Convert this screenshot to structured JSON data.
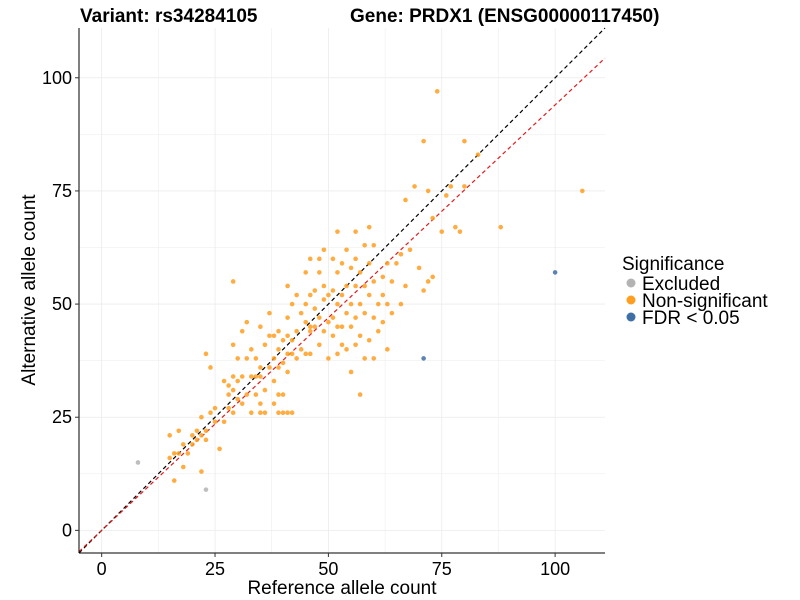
{
  "chart_data": {
    "type": "scatter",
    "title_left": "Variant: rs34284105",
    "title_right": "Gene: PRDX1 (ENSG00000117450)",
    "xlabel": "Reference allele count",
    "ylabel": "Alternative allele count",
    "xlim": [
      -5,
      111
    ],
    "ylim": [
      -5,
      111
    ],
    "xticks": [
      0,
      25,
      50,
      75,
      100
    ],
    "yticks": [
      0,
      25,
      50,
      75,
      100
    ],
    "grid": true,
    "legend": {
      "title": "Significance",
      "position": "right",
      "entries": [
        {
          "label": "Excluded",
          "color": "#b3b3b3"
        },
        {
          "label": "Non-significant",
          "color": "#ff9e1f"
        },
        {
          "label": "FDR < 0.05",
          "color": "#3e6fa5"
        }
      ]
    },
    "reference_lines": [
      {
        "name": "identity",
        "color": "#000000",
        "style": "dashed",
        "slope": 1,
        "intercept": 0
      },
      {
        "name": "fit",
        "color": "#e41a1c",
        "style": "dashed",
        "slope": 0.94,
        "intercept": 0
      }
    ],
    "series": [
      {
        "name": "Excluded",
        "color": "#b3b3b3",
        "points": [
          [
            8,
            15
          ],
          [
            23,
            9
          ]
        ]
      },
      {
        "name": "FDR < 0.05",
        "color": "#3e6fa5",
        "points": [
          [
            71,
            38
          ],
          [
            100,
            57
          ]
        ]
      },
      {
        "name": "Non-significant",
        "color": "#ff9e1f",
        "points": [
          [
            15,
            16
          ],
          [
            15,
            21
          ],
          [
            16,
            11
          ],
          [
            16,
            17
          ],
          [
            17,
            17
          ],
          [
            17,
            22
          ],
          [
            18,
            14
          ],
          [
            18,
            19
          ],
          [
            19,
            17
          ],
          [
            20,
            19
          ],
          [
            20,
            21
          ],
          [
            21,
            20
          ],
          [
            21,
            22
          ],
          [
            22,
            13
          ],
          [
            22,
            21
          ],
          [
            22,
            25
          ],
          [
            23,
            20
          ],
          [
            23,
            22
          ],
          [
            23,
            39
          ],
          [
            24,
            26
          ],
          [
            24,
            36
          ],
          [
            25,
            24
          ],
          [
            25,
            27
          ],
          [
            26,
            18
          ],
          [
            27,
            24
          ],
          [
            27,
            33
          ],
          [
            28,
            27
          ],
          [
            28,
            30
          ],
          [
            28,
            32
          ],
          [
            29,
            26
          ],
          [
            29,
            31
          ],
          [
            29,
            34
          ],
          [
            29,
            41
          ],
          [
            29,
            55
          ],
          [
            30,
            29
          ],
          [
            30,
            33
          ],
          [
            30,
            38
          ],
          [
            31,
            28
          ],
          [
            31,
            34
          ],
          [
            31,
            44
          ],
          [
            32,
            30
          ],
          [
            32,
            38
          ],
          [
            32,
            46
          ],
          [
            33,
            26
          ],
          [
            33,
            34
          ],
          [
            33,
            40
          ],
          [
            34,
            30
          ],
          [
            34,
            34
          ],
          [
            34,
            38
          ],
          [
            35,
            26
          ],
          [
            35,
            28
          ],
          [
            35,
            34
          ],
          [
            35,
            36
          ],
          [
            35,
            45
          ],
          [
            36,
            26
          ],
          [
            36,
            31
          ],
          [
            36,
            41
          ],
          [
            37,
            36
          ],
          [
            37,
            43
          ],
          [
            37,
            48
          ],
          [
            38,
            28
          ],
          [
            38,
            33
          ],
          [
            38,
            38
          ],
          [
            38,
            43
          ],
          [
            39,
            26
          ],
          [
            39,
            30
          ],
          [
            39,
            36
          ],
          [
            39,
            40
          ],
          [
            39,
            44
          ],
          [
            40,
            26
          ],
          [
            40,
            30
          ],
          [
            40,
            37
          ],
          [
            40,
            42
          ],
          [
            41,
            26
          ],
          [
            41,
            35
          ],
          [
            41,
            39
          ],
          [
            41,
            43
          ],
          [
            41,
            47
          ],
          [
            41,
            54
          ],
          [
            42,
            26
          ],
          [
            42,
            39
          ],
          [
            42,
            42
          ],
          [
            42,
            50
          ],
          [
            43,
            38
          ],
          [
            43,
            44
          ],
          [
            43,
            52
          ],
          [
            44,
            40
          ],
          [
            44,
            48
          ],
          [
            45,
            39
          ],
          [
            45,
            46
          ],
          [
            45,
            50
          ],
          [
            45,
            57
          ],
          [
            46,
            39
          ],
          [
            46,
            44
          ],
          [
            46,
            45
          ],
          [
            46,
            52
          ],
          [
            46,
            60
          ],
          [
            47,
            45
          ],
          [
            47,
            49
          ],
          [
            47,
            53
          ],
          [
            48,
            41
          ],
          [
            48,
            47
          ],
          [
            48,
            57
          ],
          [
            48,
            60
          ],
          [
            49,
            44
          ],
          [
            49,
            51
          ],
          [
            49,
            54
          ],
          [
            49,
            62
          ],
          [
            50,
            38
          ],
          [
            50,
            46
          ],
          [
            50,
            52
          ],
          [
            51,
            43
          ],
          [
            51,
            47
          ],
          [
            51,
            53
          ],
          [
            51,
            60
          ],
          [
            52,
            39
          ],
          [
            52,
            45
          ],
          [
            52,
            50
          ],
          [
            52,
            57
          ],
          [
            52,
            66
          ],
          [
            53,
            41
          ],
          [
            53,
            45
          ],
          [
            53,
            52
          ],
          [
            53,
            59
          ],
          [
            54,
            40
          ],
          [
            54,
            48
          ],
          [
            54,
            54
          ],
          [
            54,
            62
          ],
          [
            55,
            35
          ],
          [
            55,
            45
          ],
          [
            55,
            50
          ],
          [
            55,
            58
          ],
          [
            56,
            41
          ],
          [
            56,
            47
          ],
          [
            56,
            54
          ],
          [
            56,
            60
          ],
          [
            56,
            66
          ],
          [
            57,
            30
          ],
          [
            57,
            43
          ],
          [
            57,
            50
          ],
          [
            57,
            57
          ],
          [
            58,
            38
          ],
          [
            58,
            48
          ],
          [
            58,
            54
          ],
          [
            58,
            63
          ],
          [
            59,
            42
          ],
          [
            59,
            52
          ],
          [
            59,
            59
          ],
          [
            59,
            67
          ],
          [
            60,
            38
          ],
          [
            60,
            47
          ],
          [
            60,
            55
          ],
          [
            60,
            63
          ],
          [
            61,
            44
          ],
          [
            61,
            50
          ],
          [
            62,
            46
          ],
          [
            62,
            52
          ],
          [
            62,
            56
          ],
          [
            63,
            40
          ],
          [
            63,
            50
          ],
          [
            63,
            59
          ],
          [
            64,
            48
          ],
          [
            64,
            55
          ],
          [
            65,
            59
          ],
          [
            66,
            50
          ],
          [
            66,
            61
          ],
          [
            67,
            54
          ],
          [
            67,
            73
          ],
          [
            68,
            62
          ],
          [
            69,
            76
          ],
          [
            70,
            58
          ],
          [
            71,
            53
          ],
          [
            71,
            86
          ],
          [
            72,
            55
          ],
          [
            72,
            75
          ],
          [
            73,
            56
          ],
          [
            73,
            69
          ],
          [
            74,
            97
          ],
          [
            75,
            66
          ],
          [
            76,
            74
          ],
          [
            77,
            76
          ],
          [
            78,
            67
          ],
          [
            79,
            66
          ],
          [
            80,
            76
          ],
          [
            80,
            86
          ],
          [
            83,
            83
          ],
          [
            88,
            67
          ],
          [
            106,
            75
          ]
        ]
      }
    ]
  }
}
